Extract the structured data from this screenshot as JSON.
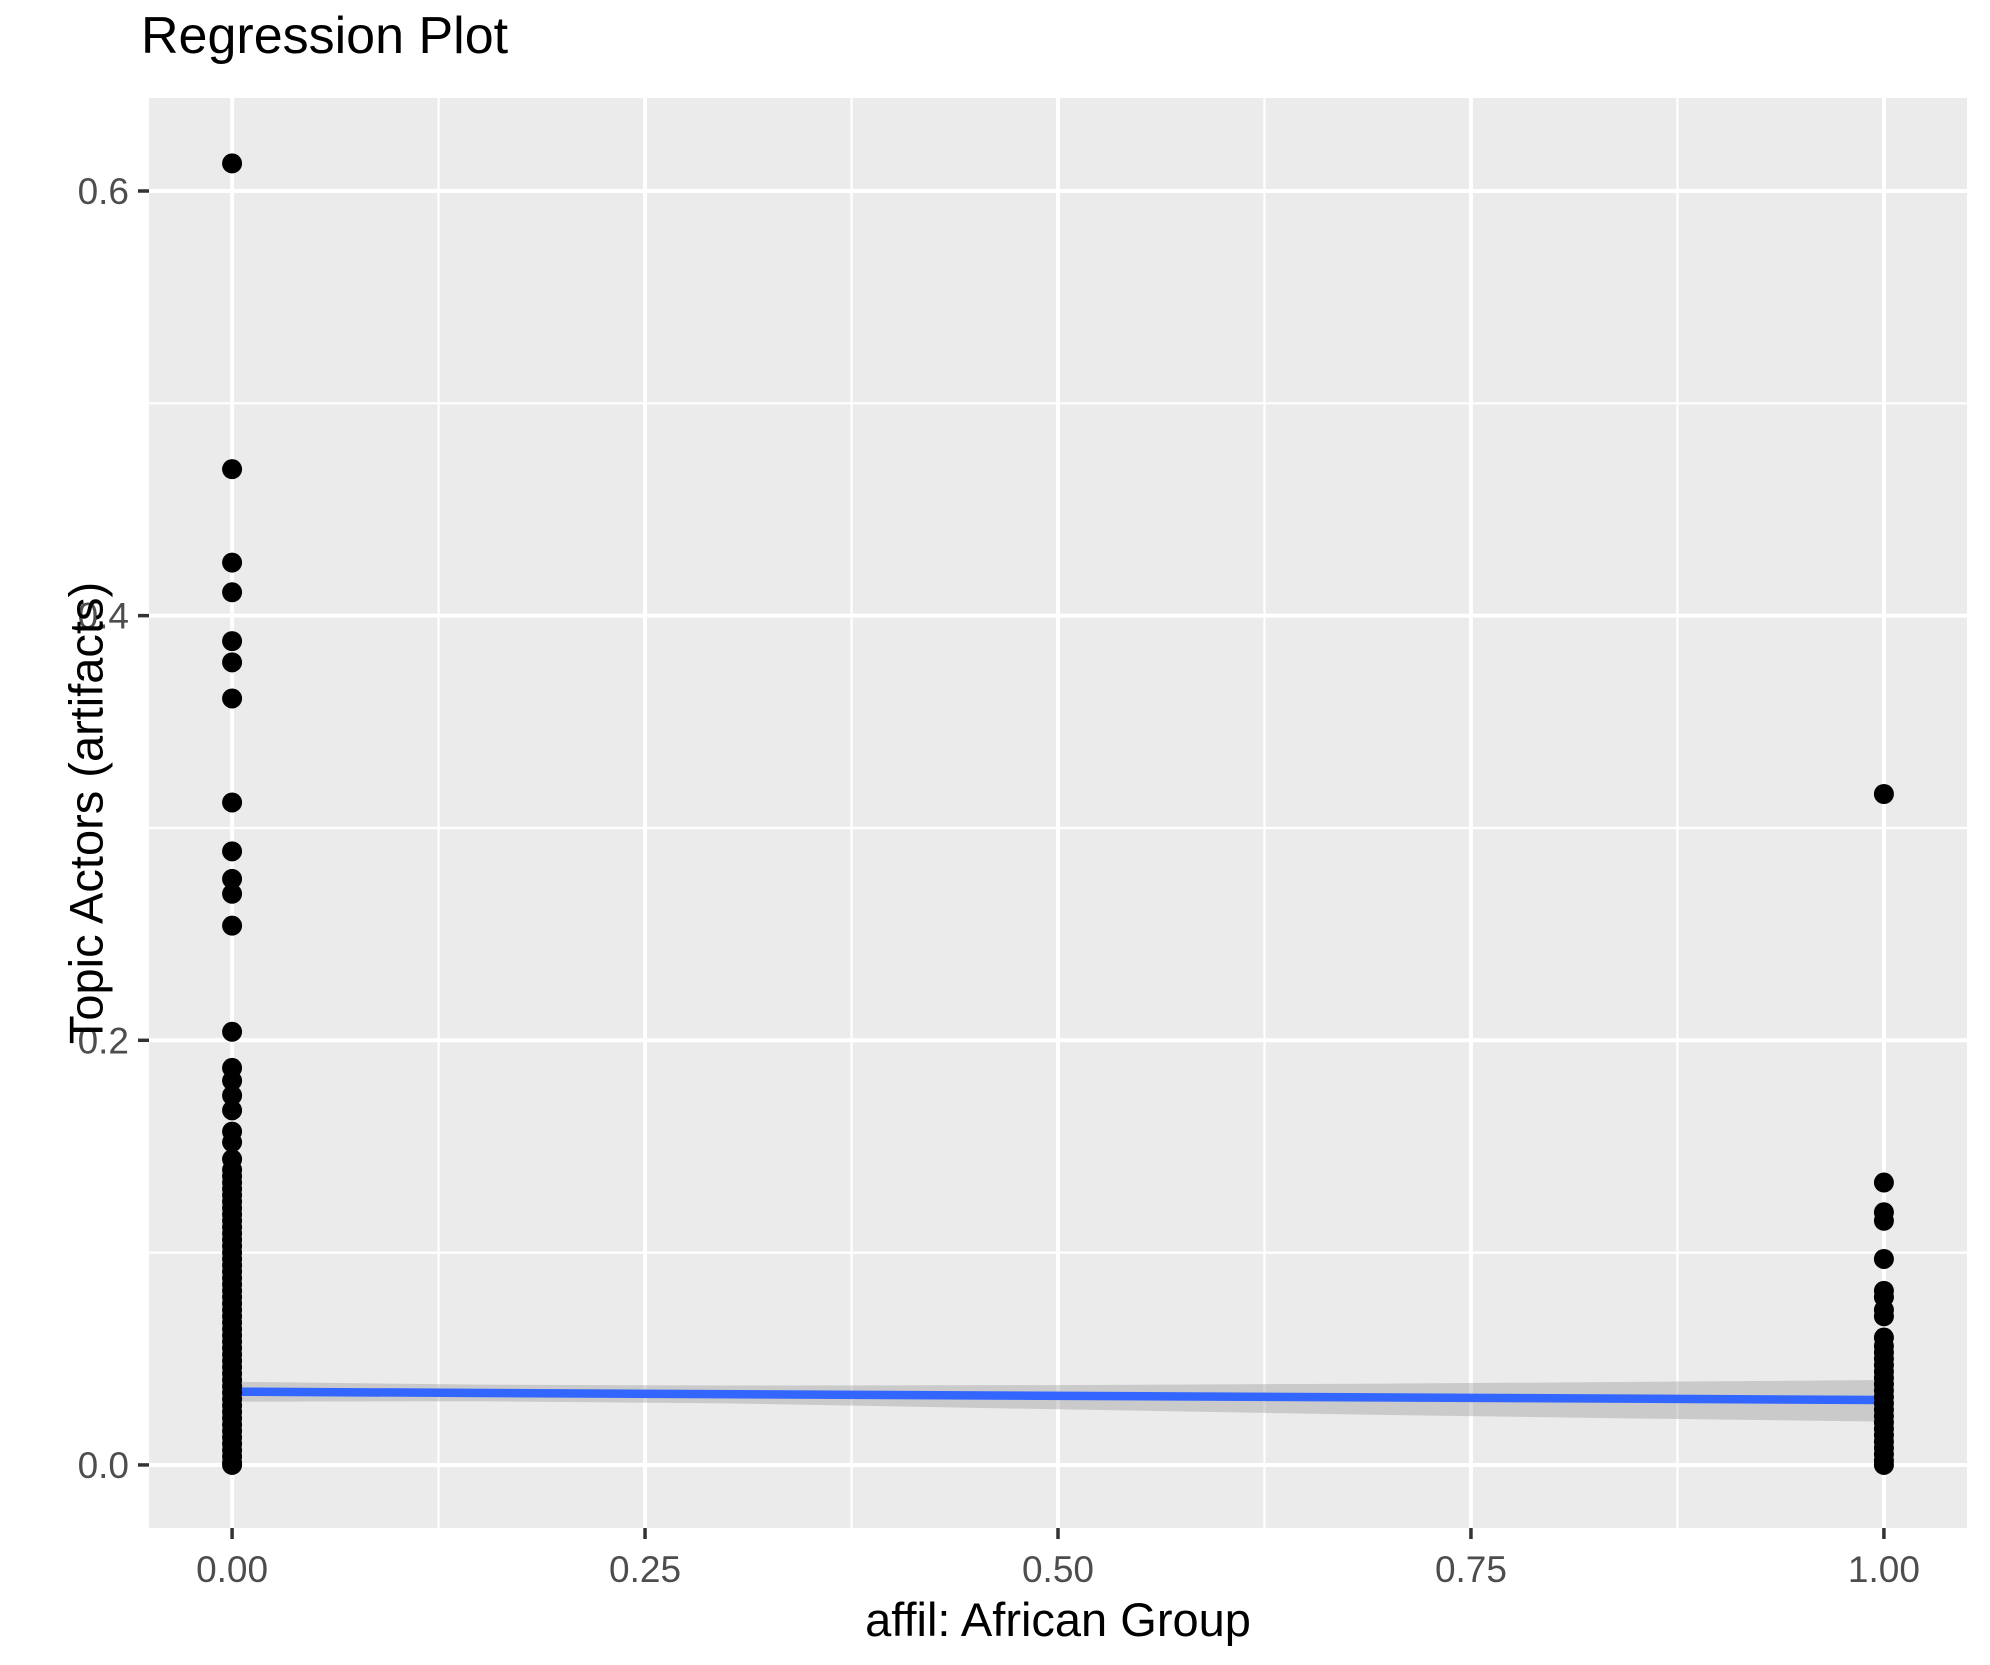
{
  "chart_data": {
    "type": "scatter",
    "title": "Regression Plot",
    "xlabel": "affil: African Group",
    "ylabel": "Topic Actors (artifacts)",
    "xlim": [
      -0.0503,
      1.0503
    ],
    "ylim": [
      -0.0297,
      0.6438
    ],
    "grid": "on",
    "legend": "none",
    "x_ticks": [
      {
        "v": 0.0,
        "label": "0.00"
      },
      {
        "v": 0.25,
        "label": "0.25"
      },
      {
        "v": 0.5,
        "label": "0.50"
      },
      {
        "v": 0.75,
        "label": "0.75"
      },
      {
        "v": 1.0,
        "label": "1.00"
      }
    ],
    "y_ticks": [
      {
        "v": 0.0,
        "label": "0.0"
      },
      {
        "v": 0.2,
        "label": "0.2"
      },
      {
        "v": 0.4,
        "label": "0.4"
      },
      {
        "v": 0.6,
        "label": "0.6"
      }
    ],
    "x_minor": [
      0.125,
      0.375,
      0.625,
      0.875
    ],
    "y_minor": [
      0.1,
      0.3,
      0.5
    ],
    "series": [
      {
        "x": 0,
        "values": [
          0.613,
          0.469,
          0.425,
          0.411,
          0.388,
          0.378,
          0.361,
          0.312,
          0.289,
          0.276,
          0.269,
          0.254,
          0.204,
          0.187,
          0.181,
          0.174,
          0.167,
          0.157,
          0.152,
          0.144,
          0.139,
          0.136,
          0.133,
          0.13,
          0.127,
          0.124,
          0.121,
          0.118,
          0.115,
          0.112,
          0.109,
          0.106,
          0.103,
          0.1,
          0.097,
          0.094,
          0.091,
          0.088,
          0.085,
          0.082,
          0.079,
          0.076,
          0.073,
          0.07,
          0.067,
          0.064,
          0.061,
          0.058,
          0.055,
          0.052,
          0.049,
          0.046,
          0.043,
          0.04,
          0.037,
          0.034,
          0.031,
          0.028,
          0.025,
          0.022,
          0.019,
          0.016,
          0.013,
          0.01,
          0.007,
          0.004,
          0.001,
          0.0
        ]
      },
      {
        "x": 1,
        "values": [
          0.316,
          0.133,
          0.119,
          0.115,
          0.097,
          0.082,
          0.079,
          0.073,
          0.07,
          0.06,
          0.056,
          0.053,
          0.05,
          0.047,
          0.044,
          0.041,
          0.038,
          0.035,
          0.032,
          0.029,
          0.026,
          0.023,
          0.02,
          0.017,
          0.014,
          0.011,
          0.008,
          0.005,
          0.002,
          0.0
        ]
      }
    ],
    "regression_line": {
      "x": [
        0,
        1
      ],
      "y": [
        0.0345,
        0.0306
      ]
    },
    "ci_band": {
      "x": [
        0.0,
        0.15,
        0.3,
        0.5,
        0.7,
        0.85,
        1.0
      ],
      "upper": [
        0.0392,
        0.0378,
        0.0374,
        0.0376,
        0.0383,
        0.0391,
        0.04
      ],
      "lower": [
        0.0298,
        0.03,
        0.029,
        0.0262,
        0.0235,
        0.0219,
        0.0204
      ]
    },
    "colors": {
      "panel": "#EBEBEB",
      "gridline": "#FFFFFF",
      "point": "#000000",
      "line": "#3366FF",
      "band": "#999999",
      "band_opacity": 0.4,
      "tick_mark": "#333333",
      "tick_label": "#4D4D4D",
      "title": "#000000"
    }
  }
}
